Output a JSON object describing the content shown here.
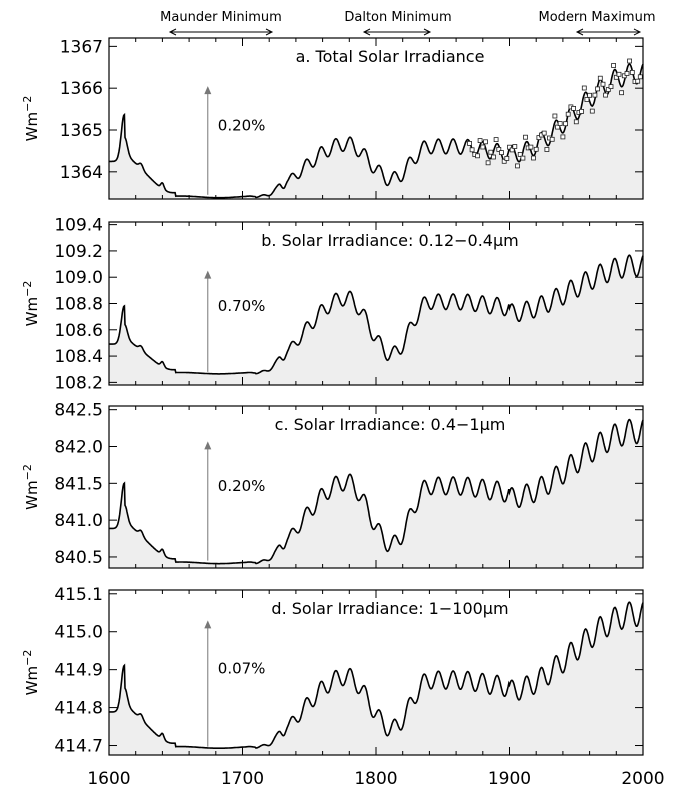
{
  "top_labels": {
    "maunder": "Maunder Minimum",
    "dalton": "Dalton Minimum",
    "modern": "Modern Maximum"
  },
  "x_ticks": [
    1600,
    1700,
    1800,
    1900,
    2000
  ],
  "colors": {
    "fill": "#eeeeee",
    "line": "#000000",
    "arrow": "#777777"
  },
  "chart_data": [
    {
      "type": "area",
      "title": "a. Total Solar Irradiance",
      "ylabel": "Wm",
      "ylabel_sup": "−2",
      "xlim": [
        1600,
        2000
      ],
      "ylim": [
        1363.35,
        1367.2
      ],
      "yticks": [
        1364,
        1365,
        1366,
        1367
      ],
      "ytick_labels": [
        "1364",
        "1365",
        "1366",
        "1367"
      ],
      "baseline": 1363.4,
      "amplitude": 1.0,
      "rel_peak": 1.27,
      "rel_dalton": 0.42,
      "rel_modern": 2.95,
      "cycle_amp": 0.25,
      "annotation": "0.20%",
      "arrow_top": 1366.05,
      "arrow_bottom": 1363.45,
      "observed_points": true
    },
    {
      "type": "area",
      "title": "b. Solar Irradiance: 0.12−0.4",
      "title_unit": "μm",
      "ylabel": "Wm",
      "ylabel_sup": "−2",
      "xlim": [
        1600,
        2000
      ],
      "ylim": [
        108.18,
        109.42
      ],
      "yticks": [
        108.2,
        108.4,
        108.6,
        108.8,
        109.0,
        109.2,
        109.4
      ],
      "ytick_labels": [
        "108.2",
        "108.4",
        "108.6",
        "108.8",
        "109.0",
        "109.2",
        "109.4"
      ],
      "baseline": 108.27,
      "amplitude": 0.26,
      "rel_peak": 2.2,
      "rel_dalton": 0.55,
      "rel_modern": 3.15,
      "cycle_amp": 0.3,
      "annotation": "0.70%",
      "arrow_top": 109.05,
      "arrow_bottom": 108.28,
      "observed_points": false
    },
    {
      "type": "area",
      "title": "c. Solar Irradiance: 0.4−1",
      "title_unit": "μm",
      "ylabel": "Wm",
      "ylabel_sup": "−2",
      "xlim": [
        1600,
        2000
      ],
      "ylim": [
        840.35,
        842.55
      ],
      "yticks": [
        840.5,
        841.0,
        841.5,
        842.0,
        842.5
      ],
      "ytick_labels": [
        "840.5",
        "841.0",
        "841.5",
        "842.0",
        "842.5"
      ],
      "baseline": 840.42,
      "amplitude": 0.55,
      "rel_peak": 2.0,
      "rel_dalton": 0.45,
      "rel_modern": 3.25,
      "cycle_amp": 0.28,
      "annotation": "0.20%",
      "arrow_top": 842.07,
      "arrow_bottom": 840.45,
      "observed_points": false
    },
    {
      "type": "area",
      "title": "d. Solar Irradiance: 1−100",
      "title_unit": "μm",
      "ylabel": "Wm",
      "ylabel_sup": "−2",
      "xlim": [
        1600,
        2000
      ],
      "ylim": [
        414.675,
        415.11
      ],
      "yticks": [
        414.7,
        414.8,
        414.9,
        415.0,
        415.1
      ],
      "ytick_labels": [
        "414.7",
        "414.8",
        "414.9",
        "415.0",
        "415.1"
      ],
      "baseline": 414.695,
      "amplitude": 0.11,
      "rel_peak": 1.7,
      "rel_dalton": 0.45,
      "rel_modern": 3.2,
      "cycle_amp": 0.28,
      "annotation": "0.07%",
      "arrow_top": 415.03,
      "arrow_bottom": 414.697,
      "observed_points": false
    }
  ]
}
